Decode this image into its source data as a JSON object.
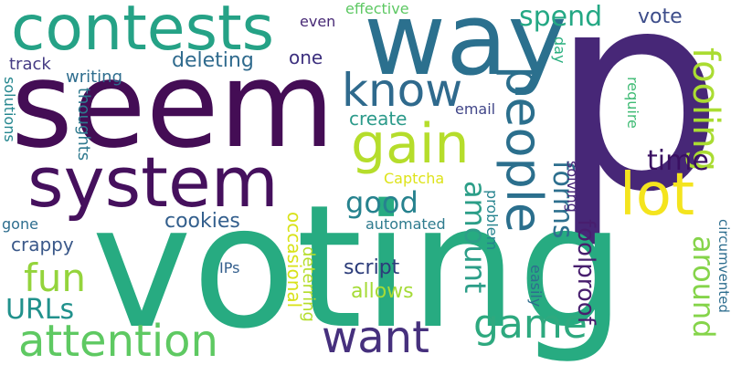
{
  "words": [
    {
      "text": "p",
      "color": "#472777",
      "vertical": false
    },
    {
      "text": "voting",
      "color": "#27ab81",
      "vertical": false
    },
    {
      "text": "seem",
      "color": "#440d55",
      "vertical": false
    },
    {
      "text": "way",
      "color": "#2b708e",
      "vertical": false
    },
    {
      "text": "contests",
      "color": "#25a286",
      "vertical": false
    },
    {
      "text": "system",
      "color": "#45105d",
      "vertical": false
    },
    {
      "text": "attention",
      "color": "#5ec962",
      "vertical": false
    },
    {
      "text": "know",
      "color": "#2f6a8d",
      "vertical": false
    },
    {
      "text": "gain",
      "color": "#b5dd2b",
      "vertical": false
    },
    {
      "text": "people",
      "color": "#2b6f8d",
      "vertical": true
    },
    {
      "text": "lot",
      "color": "#f4e41e",
      "vertical": false
    },
    {
      "text": "want",
      "color": "#46307d",
      "vertical": false
    },
    {
      "text": "game",
      "color": "#2ea97f",
      "vertical": false
    },
    {
      "text": "fun",
      "color": "#94d43c",
      "vertical": false
    },
    {
      "text": "URLs",
      "color": "#21918c",
      "vertical": false
    },
    {
      "text": "amount",
      "color": "#2c9e88",
      "vertical": true
    },
    {
      "text": "around",
      "color": "#85d44a",
      "vertical": true
    },
    {
      "text": "fooling",
      "color": "#aadc32",
      "vertical": true
    },
    {
      "text": "good",
      "color": "#26828e",
      "vertical": false
    },
    {
      "text": "time",
      "color": "#3a0f62",
      "vertical": false
    },
    {
      "text": "forms",
      "color": "#2d6f8e",
      "vertical": true
    },
    {
      "text": "spend",
      "color": "#24a884",
      "vertical": false
    },
    {
      "text": "foolproof",
      "color": "#481e6e",
      "vertical": true
    },
    {
      "text": "cookies",
      "color": "#335f8d",
      "vertical": false
    },
    {
      "text": "script",
      "color": "#2c3c7a",
      "vertical": false
    },
    {
      "text": "allows",
      "color": "#a5db36",
      "vertical": false
    },
    {
      "text": "writing",
      "color": "#2e6d8e",
      "vertical": false
    },
    {
      "text": "deleting",
      "color": "#2f6a8d",
      "vertical": false
    },
    {
      "text": "create",
      "color": "#2b9a8a",
      "vertical": false
    },
    {
      "text": "vote",
      "color": "#3d4d8a",
      "vertical": false
    },
    {
      "text": "one",
      "color": "#3c2f7e",
      "vertical": false
    },
    {
      "text": "crappy",
      "color": "#3a5889",
      "vertical": false
    },
    {
      "text": "occasional",
      "color": "#d8e219",
      "vertical": true
    },
    {
      "text": "deterring",
      "color": "#b4dd2b",
      "vertical": true
    },
    {
      "text": "track",
      "color": "#443a83",
      "vertical": false
    },
    {
      "text": "thoughts",
      "color": "#2e798e",
      "vertical": true
    },
    {
      "text": "solutions",
      "color": "#24868e",
      "vertical": true
    },
    {
      "text": "gone",
      "color": "#2d6d8e",
      "vertical": false
    },
    {
      "text": "effective",
      "color": "#5dc863",
      "vertical": false
    },
    {
      "text": "even",
      "color": "#482a76",
      "vertical": false
    },
    {
      "text": "email",
      "color": "#404588",
      "vertical": false
    },
    {
      "text": "day",
      "color": "#29af7f",
      "vertical": true
    },
    {
      "text": "require",
      "color": "#3fbb74",
      "vertical": true
    },
    {
      "text": "solving",
      "color": "#4a2a7a",
      "vertical": true
    },
    {
      "text": "Captcha",
      "color": "#dde319",
      "vertical": false
    },
    {
      "text": "automated",
      "color": "#2e7b8e",
      "vertical": false
    },
    {
      "text": "problem",
      "color": "#25838e",
      "vertical": true
    },
    {
      "text": "IPs",
      "color": "#345f8d",
      "vertical": false
    },
    {
      "text": "easily",
      "color": "#2e6d8e",
      "vertical": true
    },
    {
      "text": "circumvented",
      "color": "#2d6d8e",
      "vertical": true
    }
  ]
}
